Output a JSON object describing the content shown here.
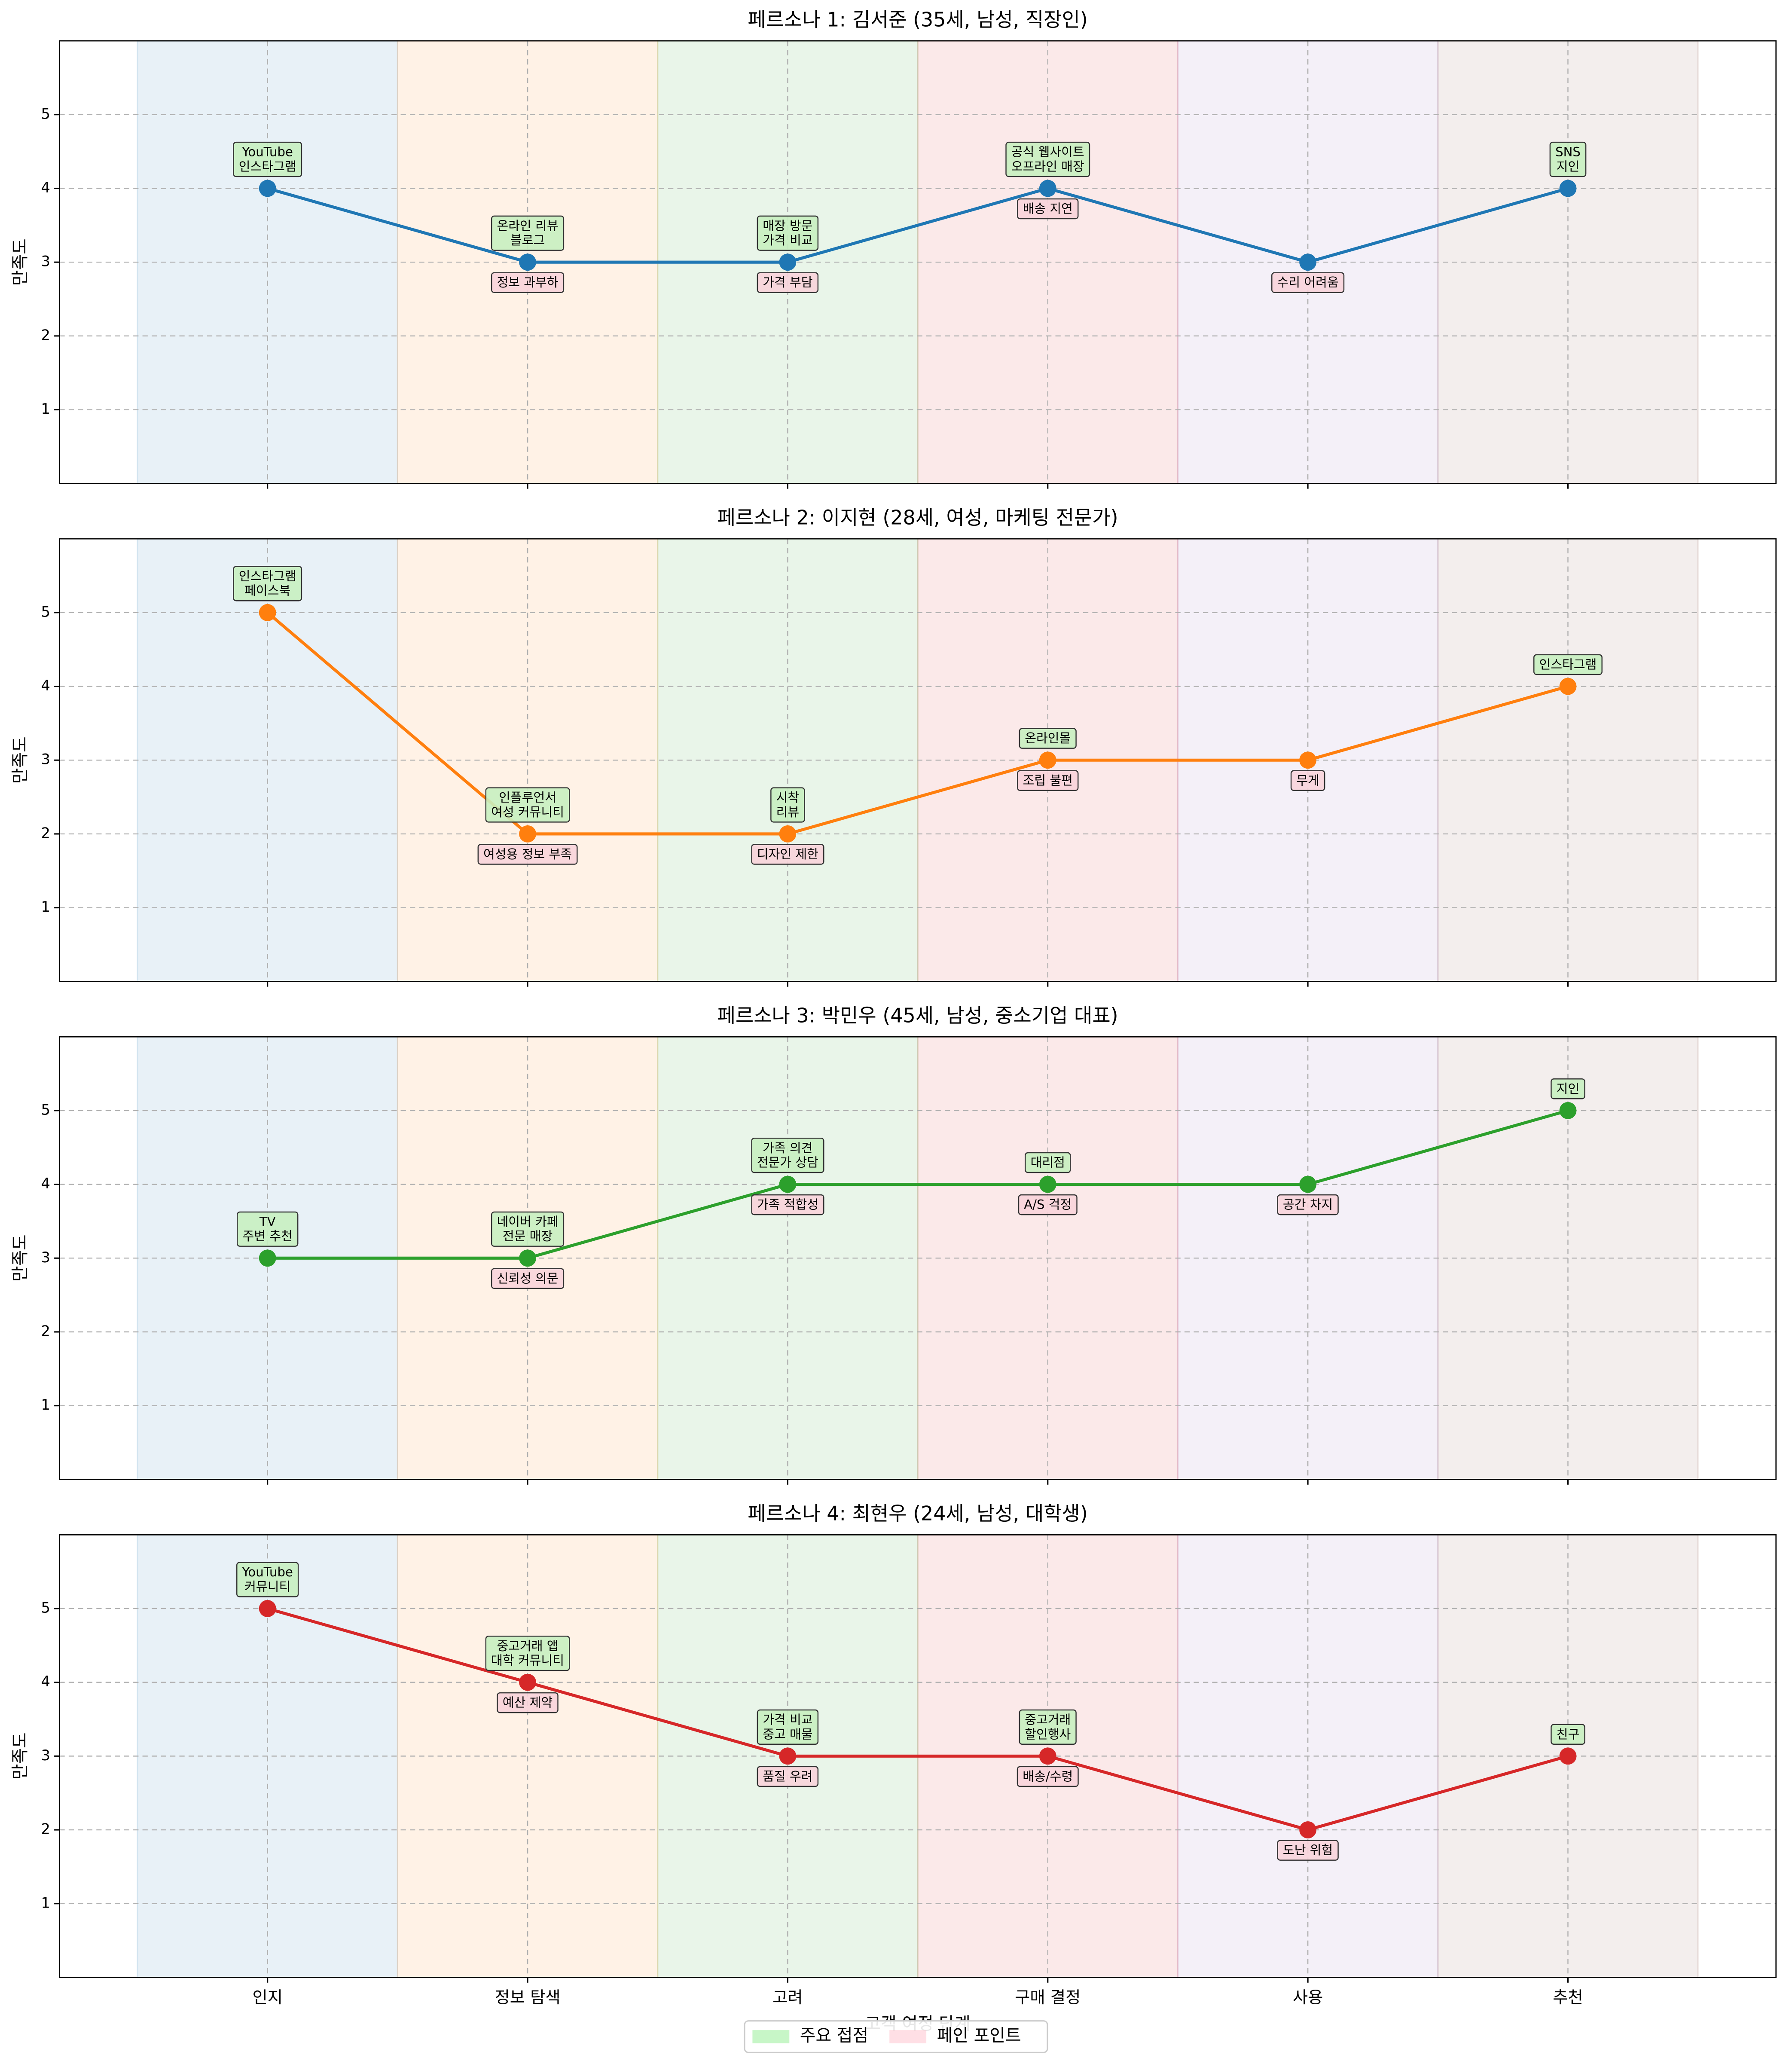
{
  "chart_data": [
    {
      "type": "line",
      "title": "페르소나 1: 김서준 (35세, 남성, 직장인)",
      "y_label": "만족도",
      "color": "#1f77b4",
      "values": [
        4,
        3,
        3,
        4,
        3,
        4
      ],
      "ylim": [
        0,
        6
      ],
      "yticks": [
        1,
        2,
        3,
        4,
        5
      ],
      "grid": true,
      "touchpoints": [
        [
          "YouTube",
          "인스타그램"
        ],
        [
          "온라인 리뷰",
          "블로그"
        ],
        [
          "매장 방문",
          "가격 비교"
        ],
        [
          "공식 웹사이트",
          "오프라인 매장"
        ],
        null,
        [
          "SNS",
          "지인"
        ]
      ],
      "pain_points": [
        null,
        "정보 과부하",
        "가격 부담",
        "배송 지연",
        "수리 어려움",
        null
      ]
    },
    {
      "type": "line",
      "title": "페르소나 2: 이지현 (28세, 여성, 마케팅 전문가)",
      "y_label": "만족도",
      "color": "#ff7f0e",
      "values": [
        5,
        2,
        2,
        3,
        3,
        4
      ],
      "ylim": [
        0,
        6
      ],
      "yticks": [
        1,
        2,
        3,
        4,
        5
      ],
      "grid": true,
      "touchpoints": [
        [
          "인스타그램",
          "페이스북"
        ],
        [
          "인플루언서",
          "여성 커뮤니티"
        ],
        [
          "시착",
          "리뷰"
        ],
        [
          "온라인몰"
        ],
        null,
        [
          "인스타그램"
        ]
      ],
      "pain_points": [
        null,
        "여성용 정보 부족",
        "디자인 제한",
        "조립 불편",
        "무게",
        null
      ]
    },
    {
      "type": "line",
      "title": "페르소나 3: 박민우 (45세, 남성, 중소기업 대표)",
      "y_label": "만족도",
      "color": "#2ca02c",
      "values": [
        3,
        3,
        4,
        4,
        4,
        5
      ],
      "ylim": [
        0,
        6
      ],
      "yticks": [
        1,
        2,
        3,
        4,
        5
      ],
      "grid": true,
      "touchpoints": [
        [
          "TV",
          "주변 추천"
        ],
        [
          "네이버 카페",
          "전문 매장"
        ],
        [
          "가족 의견",
          "전문가 상담"
        ],
        [
          "대리점"
        ],
        null,
        [
          "지인"
        ]
      ],
      "pain_points": [
        null,
        "신뢰성 의문",
        "가족 적합성",
        "A/S 걱정",
        "공간 차지",
        null
      ]
    },
    {
      "type": "line",
      "title": "페르소나 4: 최현우 (24세, 남성, 대학생)",
      "y_label": "만족도",
      "x_label": "고객 여정 단계",
      "color": "#d62728",
      "categories": [
        "인지",
        "정보 탐색",
        "고려",
        "구매 결정",
        "사용",
        "추천"
      ],
      "values": [
        5,
        4,
        3,
        3,
        2,
        3
      ],
      "ylim": [
        0,
        6
      ],
      "yticks": [
        1,
        2,
        3,
        4,
        5
      ],
      "grid": true,
      "touchpoints": [
        [
          "YouTube",
          "커뮤니티"
        ],
        [
          "중고거래 앱",
          "대학 커뮤니티"
        ],
        [
          "가격 비교",
          "중고 매물"
        ],
        [
          "중고거래",
          "할인행사"
        ],
        null,
        [
          "친구"
        ]
      ],
      "pain_points": [
        null,
        "예산 제약",
        "품질 우려",
        "배송/수령",
        "도난 위험",
        null
      ]
    }
  ],
  "stage_colors": [
    "#1f77b4",
    "#ff7f0e",
    "#2ca02c",
    "#d62728",
    "#9467bd",
    "#8c564b"
  ],
  "legend": {
    "position": "lower center",
    "entries": [
      {
        "name": "주요 접점",
        "color": "#90ee90"
      },
      {
        "name": "페인 포인트",
        "color": "#ffc0cb"
      }
    ]
  }
}
